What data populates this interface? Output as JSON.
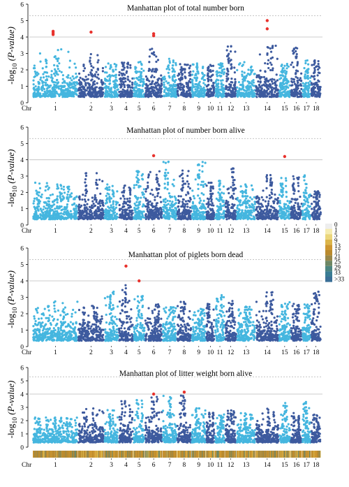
{
  "chart_data": [
    {
      "type": "scatter",
      "title": "Manhattan plot of total number born",
      "ylabel_main": "-log",
      "ylabel_sub": "10",
      "ylabel_paren": " (P-value)",
      "ylim": [
        0,
        6
      ],
      "yticks": [
        "0",
        "1",
        "2",
        "3",
        "4",
        "5",
        "6"
      ],
      "threshold_lines": [
        4,
        5.3
      ],
      "x_title": "Chr",
      "chromosomes": [
        "1",
        "2",
        "3",
        "4",
        "5",
        "6",
        "7",
        "8",
        "9",
        "10",
        "11",
        "12",
        "13",
        "14",
        "15",
        "16",
        "17",
        "18"
      ],
      "typical_peak_by_chr": [
        3.3,
        3.0,
        2.4,
        2.5,
        2.5,
        3.3,
        2.7,
        2.4,
        2.4,
        2.3,
        2.4,
        3.5,
        2.5,
        3.5,
        2.4,
        3.4,
        2.7,
        2.6
      ],
      "significant_points": [
        {
          "chr": "1",
          "value": 4.35
        },
        {
          "chr": "1",
          "value": 4.25
        },
        {
          "chr": "1",
          "value": 4.15
        },
        {
          "chr": "2",
          "value": 4.3
        },
        {
          "chr": "6",
          "value": 4.2
        },
        {
          "chr": "6",
          "value": 4.08
        },
        {
          "chr": "14",
          "value": 5.0
        },
        {
          "chr": "14",
          "value": 4.5
        }
      ]
    },
    {
      "type": "scatter",
      "title": "Manhattan plot of number born alive",
      "ylabel_main": "-log",
      "ylabel_sub": "10",
      "ylabel_paren": " (P-value)",
      "ylim": [
        0,
        6
      ],
      "yticks": [
        "0",
        "1",
        "2",
        "3",
        "4",
        "5",
        "6"
      ],
      "threshold_lines": [
        4,
        5.3
      ],
      "x_title": "Chr",
      "chromosomes": [
        "1",
        "2",
        "3",
        "4",
        "5",
        "6",
        "7",
        "8",
        "9",
        "10",
        "11",
        "12",
        "13",
        "14",
        "15",
        "16",
        "17",
        "18"
      ],
      "typical_peak_by_chr": [
        2.6,
        3.2,
        2.5,
        2.5,
        3.6,
        3.3,
        3.9,
        3.5,
        4.0,
        2.6,
        2.8,
        3.8,
        2.5,
        3.3,
        2.9,
        3.3,
        3.1,
        2.1
      ],
      "significant_points": [
        {
          "chr": "6",
          "value": 4.25
        },
        {
          "chr": "15",
          "value": 4.2
        }
      ]
    },
    {
      "type": "scatter",
      "title": "Manhattan plot of piglets born dead",
      "ylabel_main": "-log",
      "ylabel_sub": "10",
      "ylabel_paren": " (P-value)",
      "ylim": [
        0,
        6
      ],
      "yticks": [
        "0",
        "1",
        "2",
        "3",
        "4",
        "5",
        "6"
      ],
      "threshold_lines": [
        4,
        5.3
      ],
      "x_title": "Chr",
      "chromosomes": [
        "1",
        "2",
        "3",
        "4",
        "5",
        "6",
        "7",
        "8",
        "9",
        "10",
        "11",
        "12",
        "13",
        "14",
        "15",
        "16",
        "17",
        "18"
      ],
      "typical_peak_by_chr": [
        2.8,
        2.6,
        3.4,
        3.8,
        3.1,
        2.6,
        2.4,
        2.8,
        2.4,
        2.6,
        3.2,
        2.8,
        2.6,
        3.4,
        2.7,
        2.6,
        2.6,
        3.5
      ],
      "significant_points": [
        {
          "chr": "4",
          "value": 4.9
        },
        {
          "chr": "5",
          "value": 4.0
        }
      ]
    },
    {
      "type": "scatter",
      "title": "Manhattan plot of litter weight born alive",
      "ylabel_main": "-log",
      "ylabel_sub": "10",
      "ylabel_paren": " (P-value)",
      "ylim": [
        0,
        6
      ],
      "yticks": [
        "0",
        "1",
        "2",
        "3",
        "4",
        "5",
        "6"
      ],
      "threshold_lines": [
        4,
        5.3
      ],
      "x_title": "Chr",
      "chromosomes": [
        "1",
        "2",
        "3",
        "4",
        "5",
        "6",
        "7",
        "8",
        "9",
        "10",
        "11",
        "12",
        "13",
        "14",
        "15",
        "16",
        "17",
        "18"
      ],
      "typical_peak_by_chr": [
        2.3,
        3.0,
        2.8,
        3.5,
        3.6,
        3.8,
        3.9,
        3.9,
        3.0,
        2.6,
        2.5,
        2.8,
        2.6,
        3.0,
        3.5,
        2.7,
        3.5,
        2.6
      ],
      "significant_points": [
        {
          "chr": "6",
          "value": 4.0
        },
        {
          "chr": "8",
          "value": 4.15
        }
      ]
    }
  ],
  "density_legend": {
    "labels": [
      "0",
      "1",
      "5",
      "9",
      "13",
      "17",
      "21",
      "25",
      "29",
      "33",
      ">33"
    ],
    "colors": [
      "#eeeeee",
      "#f5ecb0",
      "#ebd67a",
      "#dcb549",
      "#cd9630",
      "#b98a2e",
      "#97874a",
      "#6e8764",
      "#4c8580",
      "#3a7c93",
      "#3a6f97"
    ]
  },
  "colors": {
    "dark_blue": "#3d5a9e",
    "light_blue": "#45b6df",
    "significant": "#e8322d",
    "threshold": "#bdbdbd"
  }
}
